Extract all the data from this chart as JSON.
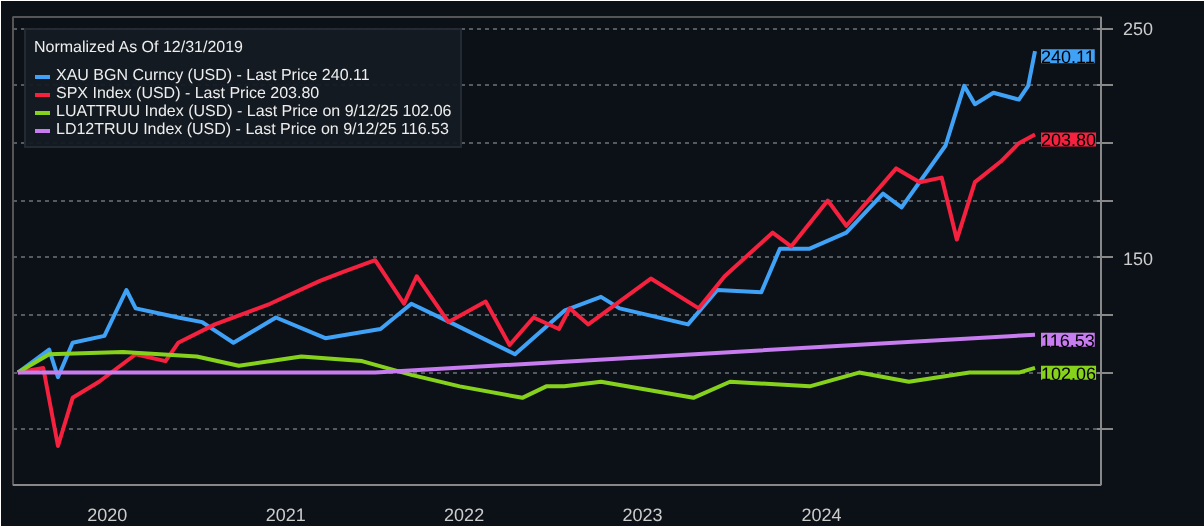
{
  "chart_data": {
    "type": "line",
    "legend_title": "Normalized As Of 12/31/2019",
    "legend": "top left",
    "grid": "y",
    "line_style": "solid",
    "marker": "none",
    "xlim": [
      "2019-12-22",
      "2026-01-25"
    ],
    "ylim": [
      51,
      255
    ],
    "xticks": [
      {
        "value": "2020-07-02",
        "label": "2020"
      },
      {
        "value": "2021-07-02",
        "label": "2021"
      },
      {
        "value": "2022-07-02",
        "label": "2022"
      },
      {
        "value": "2023-07-02",
        "label": "2023"
      },
      {
        "value": "2024-07-02",
        "label": "2024"
      }
    ],
    "yticks": [
      {
        "value": 75,
        "label": null
      },
      {
        "value": 100,
        "label": null
      },
      {
        "value": 125,
        "label": null
      },
      150,
      {
        "value": 175,
        "label": null
      },
      {
        "value": 200,
        "label": null
      },
      {
        "value": 225,
        "label": null
      },
      250
    ],
    "series": [
      {
        "name": "XAU BGN Curncy (USD) - Last Price 240.11",
        "color": "#3fa2f7",
        "x": [
          "2020-01-01",
          "2020-03-05",
          "2020-03-23",
          "2020-04-22",
          "2020-06-26",
          "2020-08-10",
          "2020-08-29",
          "2020-11-24",
          "2021-01-12",
          "2021-03-17",
          "2021-06-12",
          "2021-09-21",
          "2022-01-12",
          "2022-03-16",
          "2022-06-12",
          "2022-10-14",
          "2023-01-23",
          "2023-04-08",
          "2023-05-16",
          "2023-10-03",
          "2023-12-02",
          "2024-03-01",
          "2024-04-08",
          "2024-06-08",
          "2024-08-22",
          "2024-11-05",
          "2024-12-13",
          "2025-03-13",
          "2025-04-20",
          "2025-05-12",
          "2025-06-19",
          "2025-08-10",
          "2025-08-29",
          "2025-09-12"
        ],
        "values": [
          100,
          110,
          98,
          113,
          116,
          136,
          128,
          124,
          122,
          113,
          124,
          115,
          119,
          130,
          121,
          108,
          127,
          133,
          128,
          121,
          136,
          135,
          154,
          154,
          161,
          178,
          172,
          199,
          225,
          217,
          222,
          219,
          225,
          240.11
        ]
      },
      {
        "name": "SPX Index (USD) - Last Price 203.80",
        "color": "#f5213f",
        "x": [
          "2020-01-01",
          "2020-02-22",
          "2020-03-23",
          "2020-04-22",
          "2020-06-15",
          "2020-08-29",
          "2020-10-29",
          "2020-11-24",
          "2021-02-07",
          "2021-05-31",
          "2021-09-10",
          "2021-10-29",
          "2022-01-01",
          "2022-03-01",
          "2022-03-27",
          "2022-05-31",
          "2022-08-15",
          "2022-10-03",
          "2022-11-21",
          "2023-01-12",
          "2023-02-03",
          "2023-03-13",
          "2023-07-19",
          "2023-10-25",
          "2023-12-17",
          "2024-03-24",
          "2024-05-01",
          "2024-07-15",
          "2024-08-22",
          "2024-12-02",
          "2025-01-19",
          "2025-03-05",
          "2025-04-05",
          "2025-05-12",
          "2025-07-04",
          "2025-08-10",
          "2025-09-12"
        ],
        "values": [
          100,
          102,
          68,
          89,
          96,
          108,
          105,
          113,
          121,
          130,
          140,
          144,
          149,
          130,
          142,
          122,
          131,
          112,
          124,
          119,
          128,
          121,
          141,
          128,
          142,
          161,
          155,
          175,
          164,
          189,
          183,
          185,
          158,
          183,
          192,
          200,
          203.8
        ]
      },
      {
        "name": "LUATTRUU Index (USD) - Last Price on 9/12/25 102.06",
        "color": "#86d11c",
        "x": [
          "2020-01-01",
          "2020-03-05",
          "2020-08-03",
          "2021-01-01",
          "2021-03-28",
          "2021-08-03",
          "2021-12-05",
          "2022-03-16",
          "2022-06-23",
          "2022-10-29",
          "2022-12-17",
          "2023-01-23",
          "2023-04-08",
          "2023-10-14",
          "2023-12-28",
          "2024-06-08",
          "2024-09-17",
          "2024-12-28",
          "2025-05-01",
          "2025-08-10",
          "2025-09-12"
        ],
        "values": [
          100,
          108,
          109,
          107,
          103,
          107,
          105,
          99,
          94,
          89,
          94,
          94,
          96,
          89,
          96,
          94,
          100,
          96,
          100,
          100,
          102.06
        ]
      },
      {
        "name": "LD12TRUU Index (USD) - Last Price on 9/12/25 116.53",
        "color": "#c77cf0",
        "x": [
          "2020-01-01",
          "2022-01-01",
          "2025-09-12"
        ],
        "values": [
          100,
          100,
          116.53
        ]
      }
    ],
    "annotations": [
      {
        "text": "240.11",
        "x": "2025-09-12",
        "y": 240.11
      },
      {
        "text": "203.80",
        "x": "2025-09-12",
        "y": 203.8
      },
      {
        "text": "102.06",
        "x": "2025-09-12",
        "y": 102.06
      },
      {
        "text": "116.53",
        "x": "2025-09-12",
        "y": 116.53
      }
    ]
  }
}
